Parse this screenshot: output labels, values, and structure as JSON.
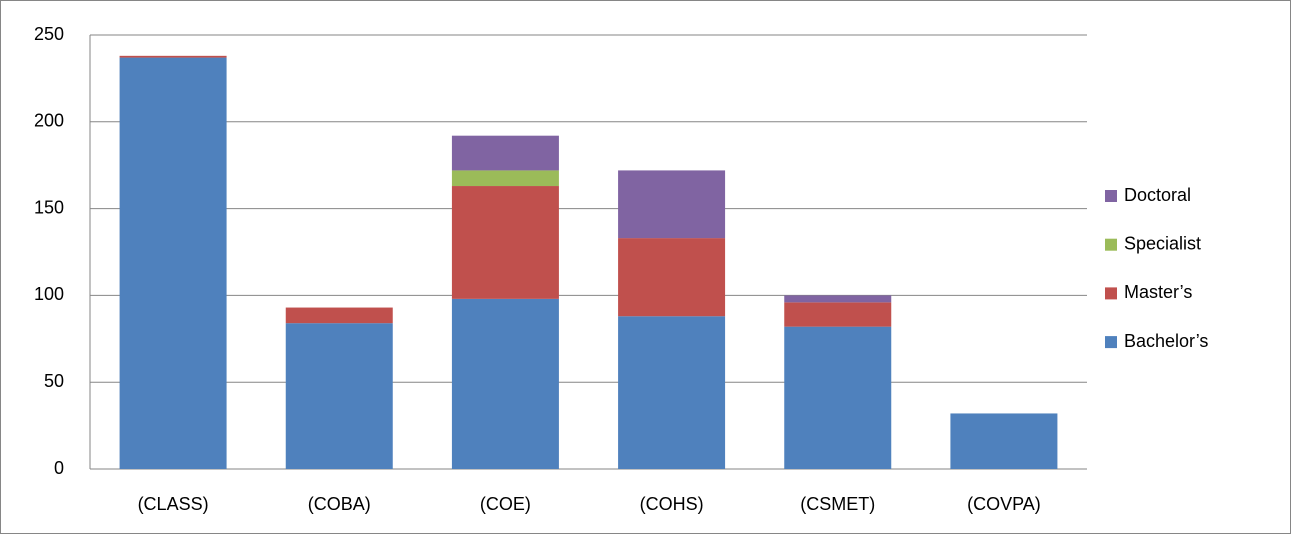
{
  "chart_data": {
    "type": "stacked_bar",
    "categories": [
      "(CLASS)",
      "(COBA)",
      "(COE)",
      "(COHS)",
      "(CSMET)",
      "(COVPA)"
    ],
    "series": [
      {
        "name": "Bachelor’s",
        "color": "#4f81bd",
        "values": [
          237,
          84,
          98,
          88,
          82,
          32
        ]
      },
      {
        "name": "Master’s",
        "color": "#c0504d",
        "values": [
          1,
          9,
          65,
          45,
          14,
          0
        ]
      },
      {
        "name": "Specialist",
        "color": "#9bbb59",
        "values": [
          0,
          0,
          9,
          0,
          0,
          0
        ]
      },
      {
        "name": "Doctoral",
        "color": "#8064a2",
        "values": [
          0,
          0,
          20,
          39,
          4,
          0
        ]
      }
    ],
    "ylim": [
      0,
      250
    ],
    "yticks": [
      0,
      50,
      100,
      150,
      200,
      250
    ],
    "grid": true,
    "legend": "right"
  }
}
